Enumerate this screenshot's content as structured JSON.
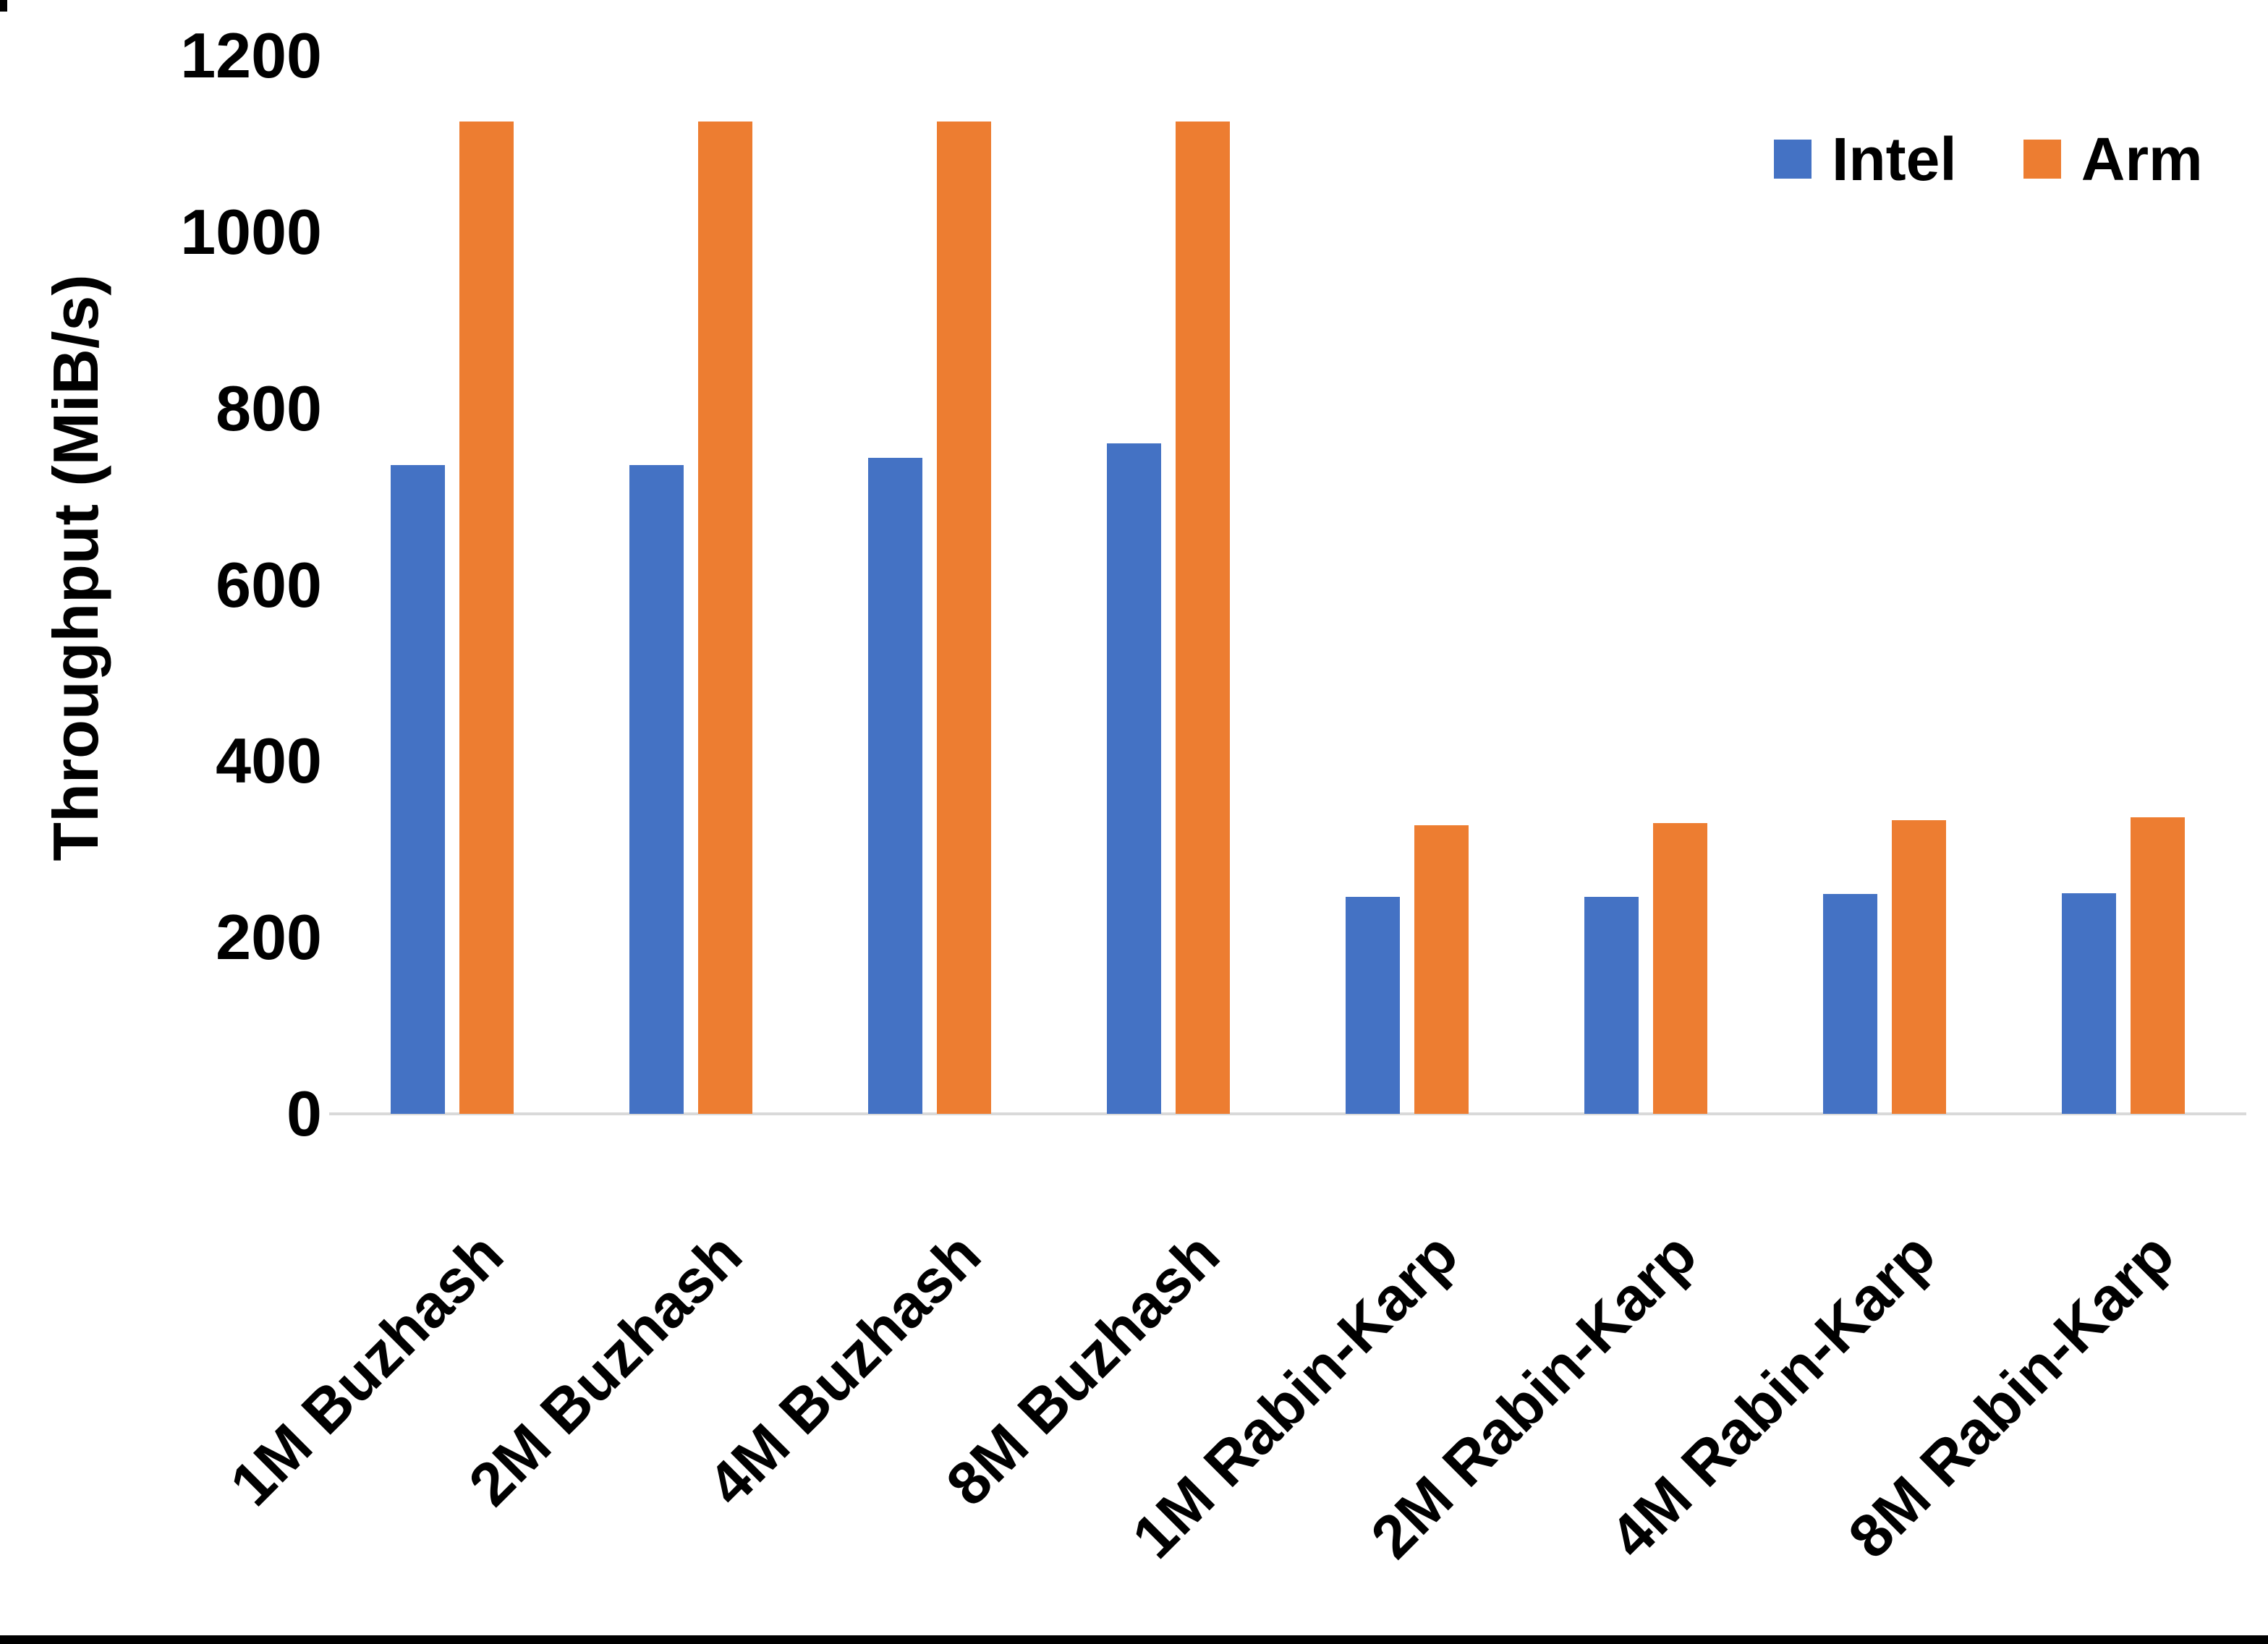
{
  "page": {
    "background": "#FFFFFF",
    "bottom_bar_color": "#000000"
  },
  "chart_data": {
    "type": "bar",
    "title": "",
    "xlabel": "",
    "ylabel": "Throughput (MiB/s)",
    "ylim": [
      0,
      1200
    ],
    "yticks": [
      0,
      200,
      400,
      600,
      800,
      1000,
      1200
    ],
    "grid": false,
    "axis_line_color": "#D9D9D9",
    "legend_position": "top-right",
    "categories": [
      "1M Buzhash",
      "2M Buzhash",
      "4M Buzhash",
      "8M Buzhash",
      "1M Rabin-Karp",
      "2M Rabin-Karp",
      "4M Rabin-Karp",
      "8M Rabin-Karp"
    ],
    "series": [
      {
        "name": "Intel",
        "color": "#4472C4",
        "values": [
          736,
          736,
          744,
          760,
          246,
          246,
          249,
          250
        ]
      },
      {
        "name": "Arm",
        "color": "#ED7D31",
        "values": [
          1125,
          1125,
          1125,
          1125,
          327,
          330,
          333,
          336
        ]
      }
    ]
  }
}
